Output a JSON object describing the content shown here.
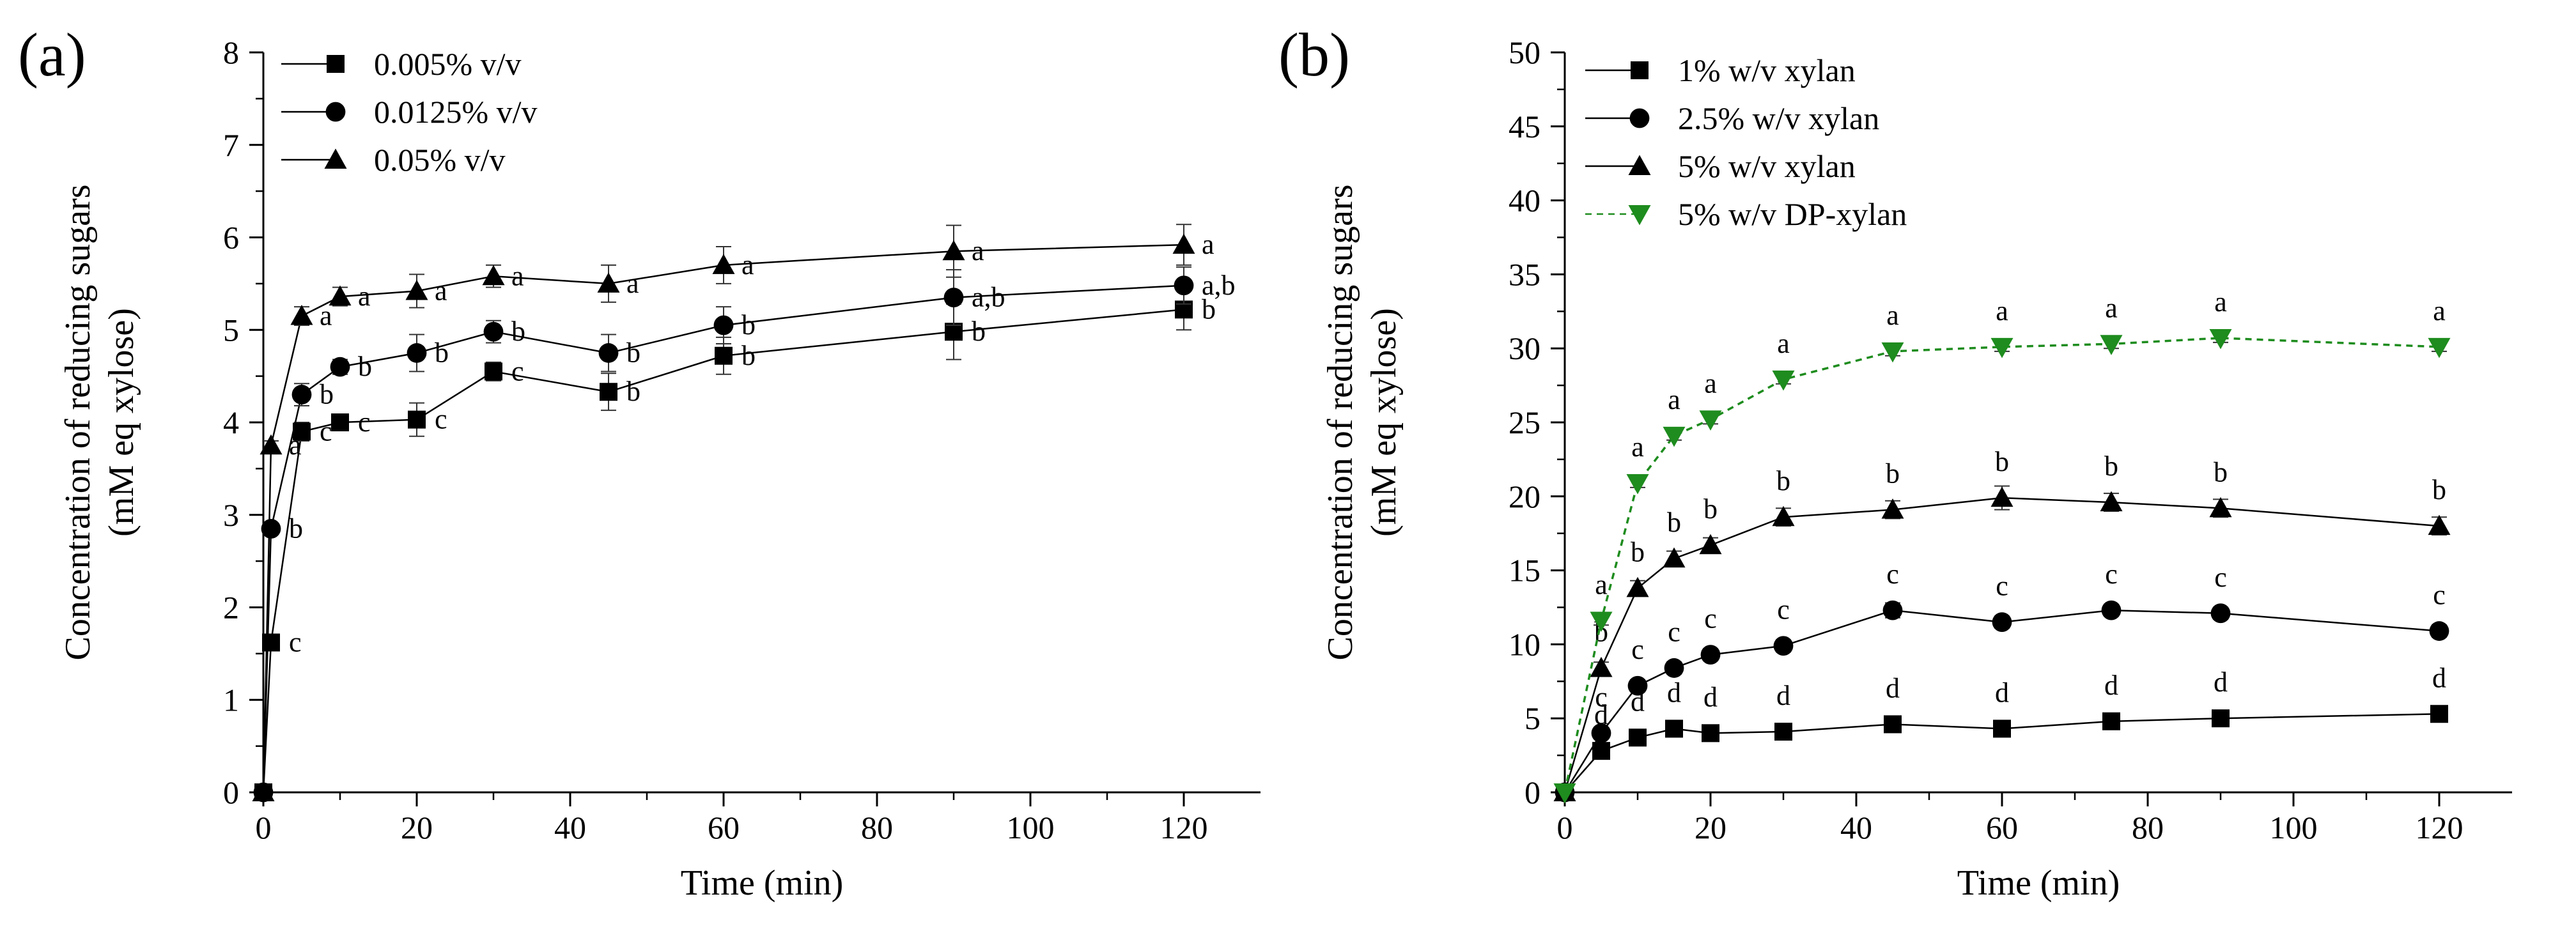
{
  "chart_data": [
    {
      "type": "line",
      "panel_label": "(a)",
      "xlabel": "Time (min)",
      "ylabel_line1": "Concentration of reducing sugars",
      "ylabel_line2": "(mM eq xylose)",
      "xlim": [
        0,
        130
      ],
      "ylim": [
        0,
        8
      ],
      "xticks": [
        "0",
        "20",
        "40",
        "60",
        "80",
        "100",
        "120"
      ],
      "yticks": [
        "0",
        "1",
        "2",
        "3",
        "4",
        "5",
        "6",
        "7",
        "8"
      ],
      "grid": false,
      "legend_position": "top-left",
      "series": [
        {
          "name": "0.005% v/v",
          "marker": "square",
          "color": "#000000",
          "dash": "solid",
          "x": [
            0,
            1,
            5,
            10,
            20,
            30,
            45,
            60,
            90,
            120
          ],
          "y": [
            0,
            1.62,
            3.9,
            4.0,
            4.03,
            4.55,
            4.33,
            4.72,
            4.98,
            5.22
          ],
          "err": [
            0,
            0.05,
            0.1,
            0.08,
            0.18,
            0.1,
            0.2,
            0.2,
            0.3,
            0.22
          ],
          "labels": [
            "",
            "c",
            "c",
            "c",
            "c",
            "c",
            "b",
            "b",
            "b",
            "b"
          ]
        },
        {
          "name": "0.0125% v/v",
          "marker": "circle",
          "color": "#000000",
          "dash": "solid",
          "x": [
            0,
            1,
            5,
            10,
            20,
            30,
            45,
            60,
            90,
            120
          ],
          "y": [
            0,
            2.85,
            4.3,
            4.6,
            4.75,
            4.98,
            4.75,
            5.05,
            5.35,
            5.48
          ],
          "err": [
            0,
            0.05,
            0.12,
            0.08,
            0.2,
            0.12,
            0.2,
            0.2,
            0.3,
            0.2
          ],
          "labels": [
            "",
            "b",
            "b",
            "b",
            "b",
            "b",
            "b",
            "b",
            "a,b",
            "a,b"
          ]
        },
        {
          "name": "0.05% v/v",
          "marker": "triangle",
          "color": "#000000",
          "dash": "solid",
          "x": [
            0,
            1,
            5,
            10,
            20,
            30,
            45,
            60,
            90,
            120
          ],
          "y": [
            0,
            3.75,
            5.15,
            5.36,
            5.42,
            5.58,
            5.5,
            5.7,
            5.85,
            5.92
          ],
          "err": [
            0,
            0.05,
            0.1,
            0.1,
            0.18,
            0.12,
            0.2,
            0.2,
            0.28,
            0.22
          ],
          "labels": [
            "",
            "a",
            "a",
            "a",
            "a",
            "a",
            "a",
            "a",
            "a",
            "a"
          ]
        }
      ]
    },
    {
      "type": "line",
      "panel_label": "(b)",
      "xlabel": "Time (min)",
      "ylabel_line1": "Concentration of reducing sugars",
      "ylabel_line2": "(mM eq xylose)",
      "xlim": [
        0,
        130
      ],
      "ylim": [
        0,
        50
      ],
      "xticks": [
        "0",
        "20",
        "40",
        "60",
        "80",
        "100",
        "120"
      ],
      "yticks": [
        "0",
        "5",
        "10",
        "15",
        "20",
        "25",
        "30",
        "35",
        "40",
        "45",
        "50"
      ],
      "grid": false,
      "legend_position": "top-left",
      "series": [
        {
          "name": "1% w/v xylan",
          "marker": "square",
          "color": "#000000",
          "dash": "solid",
          "x": [
            0,
            5,
            10,
            15,
            20,
            30,
            45,
            60,
            75,
            90,
            120
          ],
          "y": [
            0,
            2.8,
            3.7,
            4.3,
            4.0,
            4.1,
            4.6,
            4.3,
            4.8,
            5.0,
            5.3
          ],
          "err": [
            0,
            0.3,
            0.3,
            0.4,
            0.3,
            0.3,
            0.3,
            0.3,
            0.3,
            0.3,
            0.4
          ],
          "labels": [
            "",
            "d",
            "d",
            "d",
            "d",
            "d",
            "d",
            "d",
            "d",
            "d",
            "d"
          ]
        },
        {
          "name": "2.5% w/v xylan",
          "marker": "circle",
          "color": "#000000",
          "dash": "solid",
          "x": [
            0,
            5,
            10,
            15,
            20,
            30,
            45,
            60,
            75,
            90,
            120
          ],
          "y": [
            0,
            4.0,
            7.2,
            8.4,
            9.3,
            9.9,
            12.3,
            11.5,
            12.3,
            12.1,
            10.9
          ],
          "err": [
            0,
            0.3,
            0.4,
            0.4,
            0.4,
            0.4,
            0.5,
            0.4,
            0.4,
            0.4,
            0.4
          ],
          "labels": [
            "",
            "c",
            "c",
            "c",
            "c",
            "c",
            "c",
            "c",
            "c",
            "c",
            "c"
          ]
        },
        {
          "name": "5% w/v xylan",
          "marker": "triangle",
          "color": "#000000",
          "dash": "solid",
          "x": [
            0,
            5,
            10,
            15,
            20,
            30,
            45,
            60,
            75,
            90,
            120
          ],
          "y": [
            0,
            8.4,
            13.8,
            15.8,
            16.7,
            18.6,
            19.1,
            19.9,
            19.6,
            19.2,
            18.0
          ],
          "err": [
            0,
            0.4,
            0.5,
            0.5,
            0.5,
            0.6,
            0.6,
            0.8,
            0.6,
            0.6,
            0.6
          ],
          "labels": [
            "",
            "b",
            "b",
            "b",
            "b",
            "b",
            "b",
            "b",
            "b",
            "b",
            "b"
          ]
        },
        {
          "name": "5% w/v DP-xylan",
          "marker": "triangle-down",
          "color": "#1e8c1e",
          "dash": "dashed",
          "x": [
            0,
            5,
            10,
            15,
            20,
            30,
            45,
            60,
            75,
            90,
            120
          ],
          "y": [
            0,
            11.6,
            20.9,
            24.1,
            25.2,
            27.9,
            29.8,
            30.1,
            30.3,
            30.7,
            30.1
          ],
          "err": [
            0,
            0.3,
            0.3,
            0.3,
            0.3,
            0.3,
            0.3,
            0.3,
            0.3,
            0.3,
            0.3
          ],
          "labels": [
            "",
            "a",
            "a",
            "a",
            "a",
            "a",
            "a",
            "a",
            "a",
            "a",
            "a"
          ]
        }
      ]
    }
  ]
}
